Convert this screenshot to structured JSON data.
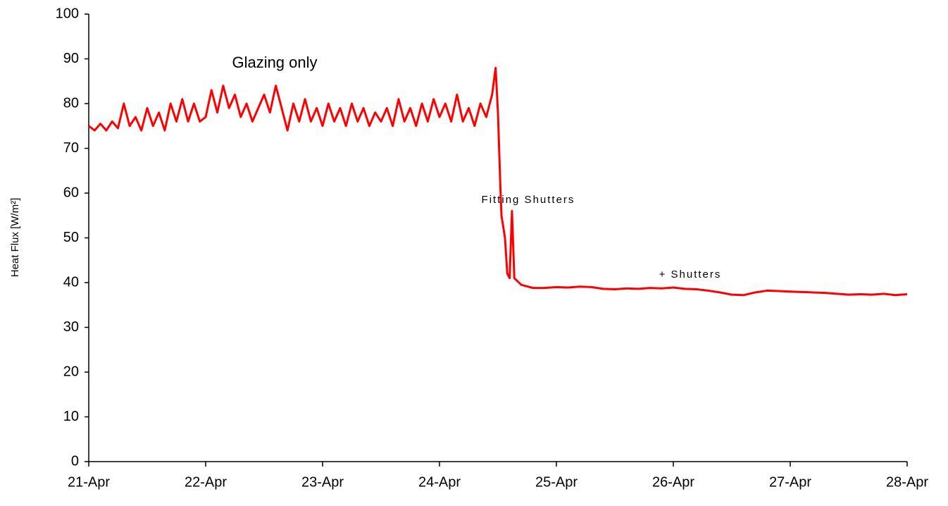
{
  "chart_data": {
    "type": "line",
    "y_label": "Heat Flux [W/m²]",
    "annotations": [
      "Glazing only",
      "Fitting Shutters",
      "+ Shutters"
    ],
    "x": [
      21,
      21.05,
      21.1,
      21.15,
      21.2,
      21.25,
      21.3,
      21.35,
      21.4,
      21.45,
      21.5,
      21.55,
      21.6,
      21.65,
      21.7,
      21.75,
      21.8,
      21.85,
      21.9,
      21.95,
      22,
      22.05,
      22.1,
      22.15,
      22.2,
      22.25,
      22.3,
      22.35,
      22.4,
      22.45,
      22.5,
      22.55,
      22.6,
      22.65,
      22.7,
      22.75,
      22.8,
      22.85,
      22.9,
      22.95,
      23,
      23.05,
      23.1,
      23.15,
      23.2,
      23.25,
      23.3,
      23.35,
      23.4,
      23.45,
      23.5,
      23.55,
      23.6,
      23.65,
      23.7,
      23.75,
      23.8,
      23.85,
      23.9,
      23.95,
      24,
      24.05,
      24.1,
      24.15,
      24.2,
      24.25,
      24.3,
      24.35,
      24.4,
      24.45,
      24.48,
      24.5,
      24.52,
      24.53,
      24.56,
      24.58,
      24.6,
      24.62,
      24.64,
      24.7,
      24.8,
      24.9,
      25,
      25.1,
      25.2,
      25.3,
      25.4,
      25.5,
      25.6,
      25.7,
      25.8,
      25.9,
      26,
      26.1,
      26.2,
      26.3,
      26.4,
      26.5,
      26.6,
      26.7,
      26.8,
      26.9,
      27,
      27.1,
      27.2,
      27.3,
      27.4,
      27.5,
      27.6,
      27.7,
      27.8,
      27.9,
      28
    ],
    "series": [
      {
        "name": "Heat Flux",
        "color": "#ff0000",
        "values": [
          75,
          74,
          75.5,
          74,
          76,
          74.5,
          80,
          75,
          77,
          74,
          79,
          75,
          78,
          74,
          80,
          76,
          81,
          76,
          80,
          76,
          77,
          83,
          78,
          84,
          79,
          82,
          77,
          80,
          76,
          79,
          82,
          78,
          84,
          79,
          74,
          80,
          76,
          81,
          76,
          79,
          75,
          80,
          76,
          79,
          75,
          80,
          76,
          79,
          75,
          78,
          76,
          79,
          75,
          81,
          76,
          79,
          75,
          80,
          76,
          81,
          77,
          80,
          76,
          82,
          76,
          79,
          75,
          80,
          77,
          82,
          88,
          78,
          62,
          55,
          50,
          42,
          41,
          56,
          41,
          39.5,
          38.8,
          38.8,
          39,
          38.9,
          39.1,
          39,
          38.6,
          38.5,
          38.7,
          38.6,
          38.8,
          38.7,
          38.9,
          38.6,
          38.5,
          38.2,
          37.8,
          37.3,
          37.2,
          37.8,
          38.2,
          38.1,
          38,
          37.9,
          37.8,
          37.7,
          37.5,
          37.3,
          37.4,
          37.3,
          37.5,
          37.2,
          37.4
        ]
      }
    ],
    "xlim": [
      21,
      28
    ],
    "xticks": [
      {
        "value": 21,
        "label": "21-Apr"
      },
      {
        "value": 22,
        "label": "22-Apr"
      },
      {
        "value": 23,
        "label": "23-Apr"
      },
      {
        "value": 24,
        "label": "24-Apr"
      },
      {
        "value": 25,
        "label": "25-Apr"
      },
      {
        "value": 26,
        "label": "26-Apr"
      },
      {
        "value": 27,
        "label": "27-Apr"
      },
      {
        "value": 28,
        "label": "28-Apr"
      }
    ],
    "ylim": [
      0,
      100
    ],
    "yticks": [
      0,
      10,
      20,
      30,
      40,
      50,
      60,
      70,
      80,
      90,
      100
    ],
    "grid": false
  }
}
